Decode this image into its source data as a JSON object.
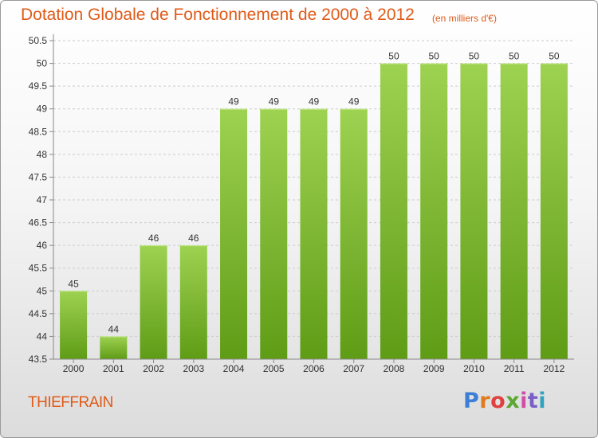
{
  "header": {
    "title": "Dotation Globale de Fonctionnement de 2000 à 2012",
    "subtitle": "(en milliers d'€)"
  },
  "footer": {
    "commune": "THIEFFRAIN",
    "brand": "Proxiti",
    "brand_colors": [
      "#3d7fd6",
      "#e07a1f",
      "#e04040",
      "#5aa832",
      "#d14da8",
      "#7a5fc8",
      "#2fa3c0"
    ]
  },
  "colors": {
    "accent": "#e05a18",
    "bar_light": "#9ed251",
    "bar_dark": "#5f9c16",
    "grid": "#cccccc"
  },
  "chart_data": {
    "type": "bar",
    "categories": [
      "2000",
      "2001",
      "2002",
      "2003",
      "2004",
      "2005",
      "2006",
      "2007",
      "2008",
      "2009",
      "2010",
      "2011",
      "2012"
    ],
    "values": [
      45,
      44,
      46,
      46,
      49,
      49,
      49,
      49,
      50,
      50,
      50,
      50,
      50
    ],
    "data_labels": [
      "45",
      "44",
      "46",
      "46",
      "49",
      "49",
      "49",
      "49",
      "50",
      "50",
      "50",
      "50",
      "50"
    ],
    "ylim": [
      43.5,
      50.5
    ],
    "yticks": [
      "43.5",
      "44",
      "44.5",
      "45",
      "45.5",
      "46",
      "46.5",
      "47",
      "47.5",
      "48",
      "48.5",
      "49",
      "49.5",
      "50",
      "50.5"
    ],
    "grid": "horizontal dashed",
    "xlabel": "",
    "ylabel": ""
  }
}
